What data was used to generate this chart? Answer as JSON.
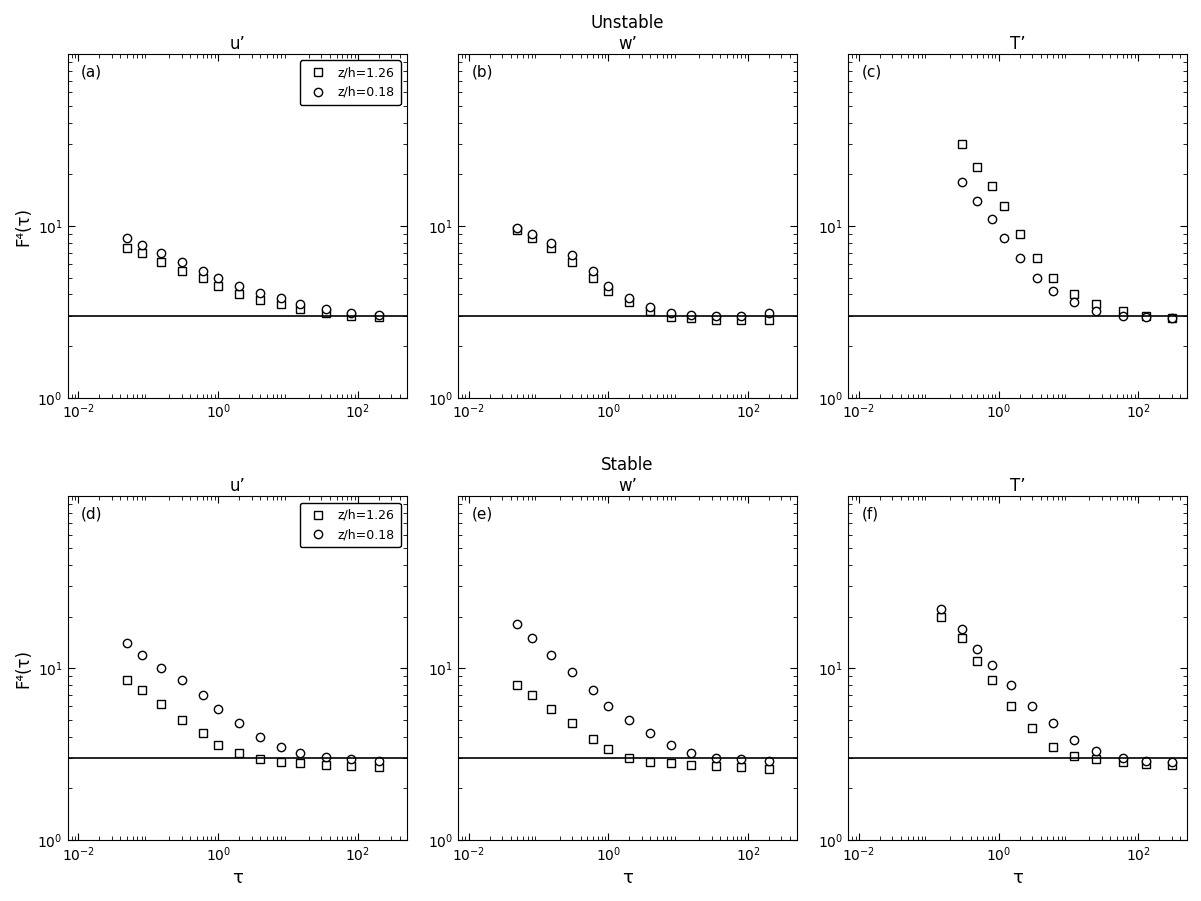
{
  "title_unstable": "Unstable",
  "title_stable": "Stable",
  "subplot_labels": [
    "(a)",
    "(b)",
    "(c)",
    "(d)",
    "(e)",
    "(f)"
  ],
  "col_titles": [
    "u’",
    "w’",
    "T’"
  ],
  "xlabel": "τ",
  "ylabel": "F⁴(τ)",
  "legend_labels": [
    "z/h=1.26",
    "z/h=0.18"
  ],
  "gaussian_value": 3.0,
  "xlim": [
    0.007,
    500
  ],
  "ylim": [
    1.0,
    100.0
  ],
  "unstable_a_sq_x": [
    0.05,
    0.08,
    0.15,
    0.3,
    0.6,
    1.0,
    2.0,
    4.0,
    8.0,
    15.0,
    35.0,
    80.0,
    200.0
  ],
  "unstable_a_sq_y": [
    7.5,
    7.0,
    6.2,
    5.5,
    5.0,
    4.5,
    4.0,
    3.7,
    3.5,
    3.3,
    3.1,
    3.0,
    2.95
  ],
  "unstable_a_ci_x": [
    0.05,
    0.08,
    0.15,
    0.3,
    0.6,
    1.0,
    2.0,
    4.0,
    8.0,
    15.0,
    35.0,
    80.0,
    200.0
  ],
  "unstable_a_ci_y": [
    8.5,
    7.8,
    7.0,
    6.2,
    5.5,
    5.0,
    4.5,
    4.1,
    3.8,
    3.5,
    3.3,
    3.1,
    3.05
  ],
  "unstable_b_sq_x": [
    0.05,
    0.08,
    0.15,
    0.3,
    0.6,
    1.0,
    2.0,
    4.0,
    8.0,
    15.0,
    35.0,
    80.0,
    200.0
  ],
  "unstable_b_sq_y": [
    9.5,
    8.5,
    7.5,
    6.2,
    5.0,
    4.2,
    3.6,
    3.2,
    2.95,
    2.9,
    2.85,
    2.85,
    2.85
  ],
  "unstable_b_ci_x": [
    0.05,
    0.08,
    0.15,
    0.3,
    0.6,
    1.0,
    2.0,
    4.0,
    8.0,
    15.0,
    35.0,
    80.0,
    200.0
  ],
  "unstable_b_ci_y": [
    9.8,
    9.0,
    8.0,
    6.8,
    5.5,
    4.5,
    3.8,
    3.4,
    3.1,
    3.05,
    3.0,
    3.0,
    3.1
  ],
  "unstable_c_sq_x": [
    0.3,
    0.5,
    0.8,
    1.2,
    2.0,
    3.5,
    6.0,
    12.0,
    25.0,
    60.0,
    130.0,
    300.0
  ],
  "unstable_c_sq_y": [
    30.0,
    22.0,
    17.0,
    13.0,
    9.0,
    6.5,
    5.0,
    4.0,
    3.5,
    3.2,
    3.0,
    2.9
  ],
  "unstable_c_ci_x": [
    0.3,
    0.5,
    0.8,
    1.2,
    2.0,
    3.5,
    6.0,
    12.0,
    25.0,
    60.0,
    130.0,
    300.0
  ],
  "unstable_c_ci_y": [
    18.0,
    14.0,
    11.0,
    8.5,
    6.5,
    5.0,
    4.2,
    3.6,
    3.2,
    3.0,
    2.95,
    2.9
  ],
  "stable_d_sq_x": [
    0.05,
    0.08,
    0.15,
    0.3,
    0.6,
    1.0,
    2.0,
    4.0,
    8.0,
    15.0,
    35.0,
    80.0,
    200.0
  ],
  "stable_d_sq_y": [
    8.5,
    7.5,
    6.2,
    5.0,
    4.2,
    3.6,
    3.2,
    2.95,
    2.85,
    2.8,
    2.75,
    2.7,
    2.65
  ],
  "stable_d_ci_x": [
    0.05,
    0.08,
    0.15,
    0.3,
    0.6,
    1.0,
    2.0,
    4.0,
    8.0,
    15.0,
    35.0,
    80.0,
    200.0
  ],
  "stable_d_ci_y": [
    14.0,
    12.0,
    10.0,
    8.5,
    7.0,
    5.8,
    4.8,
    4.0,
    3.5,
    3.2,
    3.05,
    2.95,
    2.9
  ],
  "stable_e_sq_x": [
    0.05,
    0.08,
    0.15,
    0.3,
    0.6,
    1.0,
    2.0,
    4.0,
    8.0,
    15.0,
    35.0,
    80.0,
    200.0
  ],
  "stable_e_sq_y": [
    8.0,
    7.0,
    5.8,
    4.8,
    3.9,
    3.4,
    3.0,
    2.85,
    2.8,
    2.75,
    2.7,
    2.65,
    2.6
  ],
  "stable_e_ci_x": [
    0.05,
    0.08,
    0.15,
    0.3,
    0.6,
    1.0,
    2.0,
    4.0,
    8.0,
    15.0,
    35.0,
    80.0,
    200.0
  ],
  "stable_e_ci_y": [
    18.0,
    15.0,
    12.0,
    9.5,
    7.5,
    6.0,
    5.0,
    4.2,
    3.6,
    3.2,
    3.0,
    2.95,
    2.9
  ],
  "stable_f_sq_x": [
    0.15,
    0.3,
    0.5,
    0.8,
    1.5,
    3.0,
    6.0,
    12.0,
    25.0,
    60.0,
    130.0,
    300.0
  ],
  "stable_f_sq_y": [
    20.0,
    15.0,
    11.0,
    8.5,
    6.0,
    4.5,
    3.5,
    3.1,
    2.95,
    2.85,
    2.78,
    2.72
  ],
  "stable_f_ci_x": [
    0.15,
    0.3,
    0.5,
    0.8,
    1.5,
    3.0,
    6.0,
    12.0,
    25.0,
    60.0,
    130.0,
    300.0
  ],
  "stable_f_ci_y": [
    22.0,
    17.0,
    13.0,
    10.5,
    8.0,
    6.0,
    4.8,
    3.8,
    3.3,
    3.0,
    2.9,
    2.85
  ]
}
